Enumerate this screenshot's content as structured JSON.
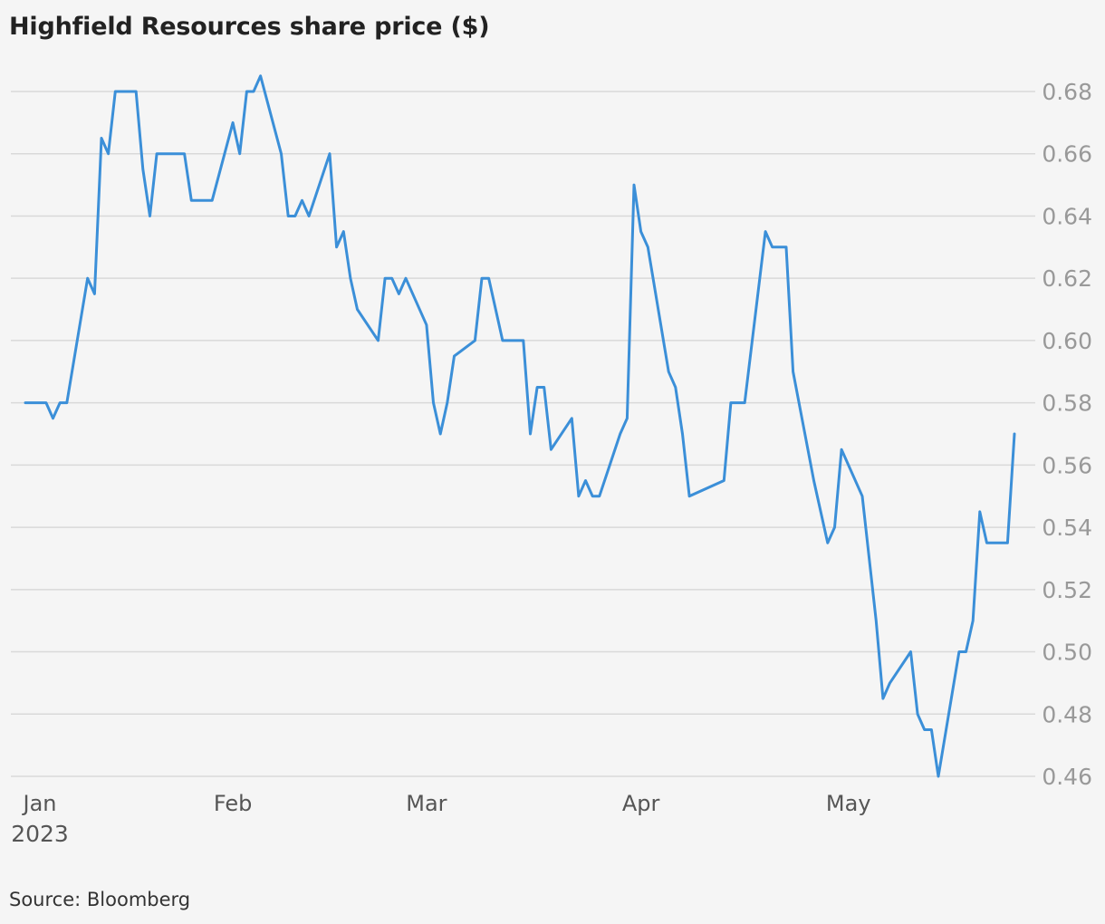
{
  "title": "Highfield Resources share price ($)",
  "source": "Source: Bloomberg",
  "chart_data": {
    "type": "line",
    "title": "Highfield Resources share price ($)",
    "xlabel": "",
    "ylabel": "",
    "x_ticks": [
      {
        "label": "Jan",
        "sub": "2023",
        "date": "2023-01-01"
      },
      {
        "label": "Feb",
        "date": "2023-02-01"
      },
      {
        "label": "Mar",
        "date": "2023-03-01"
      },
      {
        "label": "Apr",
        "date": "2023-04-01"
      },
      {
        "label": "May",
        "date": "2023-05-01"
      }
    ],
    "xlim": [
      "2022-12-31",
      "2023-05-26"
    ],
    "ylim": [
      0.46,
      0.685
    ],
    "y_ticks": [
      0.46,
      0.48,
      0.5,
      0.52,
      0.54,
      0.56,
      0.58,
      0.6,
      0.62,
      0.64,
      0.66,
      0.68
    ],
    "y_axis_position": "right",
    "grid": "horizontal",
    "line_color": "#3b8fd8",
    "series": [
      {
        "points": [
          [
            "2023-01-02",
            0.58
          ],
          [
            "2023-01-03",
            0.58
          ],
          [
            "2023-01-04",
            0.58
          ],
          [
            "2023-01-05",
            0.58
          ],
          [
            "2023-01-06",
            0.575
          ],
          [
            "2023-01-07",
            0.58
          ],
          [
            "2023-01-08",
            0.58
          ],
          [
            "2023-01-11",
            0.62
          ],
          [
            "2023-01-12",
            0.615
          ],
          [
            "2023-01-13",
            0.665
          ],
          [
            "2023-01-14",
            0.66
          ],
          [
            "2023-01-15",
            0.68
          ],
          [
            "2023-01-16",
            0.68
          ],
          [
            "2023-01-17",
            0.68
          ],
          [
            "2023-01-18",
            0.68
          ],
          [
            "2023-01-19",
            0.655
          ],
          [
            "2023-01-20",
            0.64
          ],
          [
            "2023-01-21",
            0.66
          ],
          [
            "2023-01-22",
            0.66
          ],
          [
            "2023-01-25",
            0.66
          ],
          [
            "2023-01-26",
            0.645
          ],
          [
            "2023-01-29",
            0.645
          ],
          [
            "2023-02-01",
            0.67
          ],
          [
            "2023-02-02",
            0.66
          ],
          [
            "2023-02-03",
            0.68
          ],
          [
            "2023-02-04",
            0.68
          ],
          [
            "2023-02-05",
            0.685
          ],
          [
            "2023-02-08",
            0.66
          ],
          [
            "2023-02-09",
            0.64
          ],
          [
            "2023-02-10",
            0.64
          ],
          [
            "2023-02-11",
            0.645
          ],
          [
            "2023-02-12",
            0.64
          ],
          [
            "2023-02-15",
            0.66
          ],
          [
            "2023-02-16",
            0.63
          ],
          [
            "2023-02-17",
            0.635
          ],
          [
            "2023-02-18",
            0.62
          ],
          [
            "2023-02-19",
            0.61
          ],
          [
            "2023-02-22",
            0.6
          ],
          [
            "2023-02-23",
            0.62
          ],
          [
            "2023-02-24",
            0.62
          ],
          [
            "2023-02-25",
            0.615
          ],
          [
            "2023-02-26",
            0.62
          ],
          [
            "2023-03-01",
            0.605
          ],
          [
            "2023-03-02",
            0.58
          ],
          [
            "2023-03-03",
            0.57
          ],
          [
            "2023-03-04",
            0.58
          ],
          [
            "2023-03-05",
            0.595
          ],
          [
            "2023-03-08",
            0.6
          ],
          [
            "2023-03-09",
            0.62
          ],
          [
            "2023-03-10",
            0.62
          ],
          [
            "2023-03-12",
            0.6
          ],
          [
            "2023-03-15",
            0.6
          ],
          [
            "2023-03-16",
            0.57
          ],
          [
            "2023-03-17",
            0.585
          ],
          [
            "2023-03-18",
            0.585
          ],
          [
            "2023-03-19",
            0.565
          ],
          [
            "2023-03-22",
            0.575
          ],
          [
            "2023-03-23",
            0.55
          ],
          [
            "2023-03-24",
            0.555
          ],
          [
            "2023-03-25",
            0.55
          ],
          [
            "2023-03-26",
            0.55
          ],
          [
            "2023-03-29",
            0.57
          ],
          [
            "2023-03-30",
            0.575
          ],
          [
            "2023-03-31",
            0.65
          ],
          [
            "2023-04-01",
            0.635
          ],
          [
            "2023-04-02",
            0.63
          ],
          [
            "2023-04-05",
            0.59
          ],
          [
            "2023-04-06",
            0.585
          ],
          [
            "2023-04-07",
            0.57
          ],
          [
            "2023-04-08",
            0.55
          ],
          [
            "2023-04-13",
            0.555
          ],
          [
            "2023-04-14",
            0.58
          ],
          [
            "2023-04-16",
            0.58
          ],
          [
            "2023-04-19",
            0.635
          ],
          [
            "2023-04-20",
            0.63
          ],
          [
            "2023-04-22",
            0.63
          ],
          [
            "2023-04-23",
            0.59
          ],
          [
            "2023-04-26",
            0.555
          ],
          [
            "2023-04-28",
            0.535
          ],
          [
            "2023-04-29",
            0.54
          ],
          [
            "2023-04-30",
            0.565
          ],
          [
            "2023-05-03",
            0.55
          ],
          [
            "2023-05-05",
            0.51
          ],
          [
            "2023-05-06",
            0.485
          ],
          [
            "2023-05-07",
            0.49
          ],
          [
            "2023-05-10",
            0.5
          ],
          [
            "2023-05-11",
            0.48
          ],
          [
            "2023-05-12",
            0.475
          ],
          [
            "2023-05-13",
            0.475
          ],
          [
            "2023-05-14",
            0.46
          ],
          [
            "2023-05-17",
            0.5
          ],
          [
            "2023-05-18",
            0.5
          ],
          [
            "2023-05-19",
            0.51
          ],
          [
            "2023-05-20",
            0.545
          ],
          [
            "2023-05-21",
            0.535
          ],
          [
            "2023-05-22",
            0.535
          ],
          [
            "2023-05-24",
            0.535
          ],
          [
            "2023-05-25",
            0.57
          ]
        ]
      }
    ]
  }
}
